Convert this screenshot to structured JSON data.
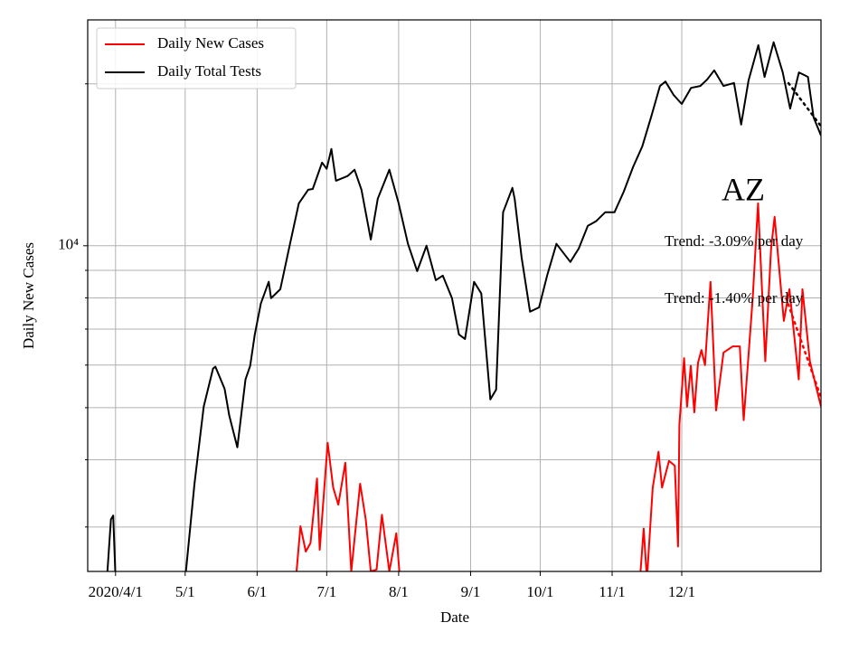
{
  "chart_data": {
    "type": "line",
    "annotation": "AZ",
    "xlabel": "Date",
    "ylabel": "Daily New Cases",
    "yscale": "log",
    "grid": true,
    "legend": "upper left",
    "xlim": [
      -12,
      304
    ],
    "xticks": [
      {
        "value": 0,
        "label": "2020/4/1"
      },
      {
        "value": 30,
        "label": "5/1"
      },
      {
        "value": 61,
        "label": "6/1"
      },
      {
        "value": 91,
        "label": "7/1"
      },
      {
        "value": 122,
        "label": "8/1"
      },
      {
        "value": 153,
        "label": "9/1"
      },
      {
        "value": 183,
        "label": "10/1"
      },
      {
        "value": 214,
        "label": "11/1"
      },
      {
        "value": 244,
        "label": "12/1"
      }
    ],
    "ylim": [
      2480,
      26300
    ],
    "yticks": [
      {
        "value": 10000,
        "label": "10⁴"
      }
    ],
    "yminor_ticks": [
      3000,
      4000,
      5000,
      6000,
      7000,
      8000,
      9000,
      20000
    ],
    "series": [
      {
        "name": "Daily New Cases",
        "color": "#ff0000",
        "x": [
          78,
          79.7,
          82,
          84,
          86.8,
          88,
          91.4,
          93.8,
          96,
          99,
          101.6,
          105.4,
          107.8,
          110,
          112.5,
          114.8,
          118,
          121,
          122.6,
          null,
          226,
          227.6,
          229,
          231.5,
          234,
          235.5,
          238.5,
          241,
          242.4,
          243,
          245,
          246.3,
          247.9,
          249.4,
          251,
          252.5,
          254,
          256.4,
          258.8,
          262,
          266,
          269,
          270.7,
          272.3,
          274.6,
          276.9,
          280,
          282.5,
          284,
          288,
          290.4,
          294.4,
          296,
          299.2,
          304
        ],
        "values": [
          2480,
          3010,
          2700,
          2800,
          3690,
          2720,
          4300,
          3550,
          3300,
          3950,
          2480,
          3610,
          3100,
          2480,
          2500,
          3160,
          2480,
          2920,
          2400,
          null,
          2400,
          2980,
          2400,
          3550,
          4140,
          3550,
          3980,
          3900,
          2760,
          4650,
          6180,
          5020,
          5980,
          4900,
          6060,
          6400,
          6000,
          8570,
          4940,
          6330,
          6500,
          6500,
          4740,
          5860,
          7990,
          11990,
          6100,
          9880,
          11320,
          7250,
          8300,
          5640,
          8300,
          6100,
          5020
        ]
      },
      {
        "name": "Daily Total Tests",
        "color": "#000000",
        "x": [
          -4,
          -2,
          -1,
          0,
          null,
          30,
          34,
          38,
          42,
          43,
          47,
          49,
          52.5,
          56,
          58,
          60,
          62.6,
          66,
          67,
          71,
          75,
          79,
          83,
          85,
          89,
          91,
          93,
          95,
          100,
          103,
          106,
          110,
          113,
          118,
          122,
          126,
          130,
          134,
          138,
          141,
          145,
          148,
          150.6,
          154.5,
          157.6,
          161.5,
          164,
          167,
          171,
          172,
          175,
          178.6,
          182.5,
          186,
          190,
          196,
          199.6,
          203.5,
          207,
          211,
          215,
          219,
          223,
          227,
          231,
          234.6,
          237,
          240.5,
          244,
          248,
          252,
          255,
          258,
          262,
          266.5,
          269.6,
          272.8,
          277,
          279.7,
          283.6,
          287.5,
          290.7,
          294.5,
          298.4,
          300.8,
          304
        ],
        "values": [
          2300,
          3100,
          3150,
          2400,
          null,
          2400,
          3610,
          5020,
          5910,
          5960,
          5420,
          4830,
          4220,
          5640,
          5980,
          6840,
          7810,
          8570,
          7990,
          8300,
          10000,
          11990,
          12710,
          12750,
          14280,
          13900,
          15130,
          13210,
          13480,
          13850,
          12710,
          10270,
          12230,
          13850,
          11990,
          10080,
          8970,
          10000,
          8630,
          8800,
          7990,
          6840,
          6710,
          8570,
          8150,
          5180,
          5400,
          11540,
          12810,
          12230,
          9510,
          7540,
          7680,
          8810,
          10080,
          9330,
          9880,
          10890,
          11100,
          11540,
          11540,
          12610,
          14000,
          15310,
          17460,
          19820,
          20200,
          19070,
          18350,
          19660,
          19820,
          20390,
          21190,
          19820,
          20070,
          16800,
          20300,
          23600,
          20600,
          23900,
          21000,
          17990,
          21000,
          20600,
          17330,
          16030
        ]
      }
    ],
    "trends": [
      {
        "color": "#000000",
        "x": [
          290,
          304
        ],
        "values": [
          20060,
          16680
        ],
        "text": "Trend: -3.09% per day"
      },
      {
        "color": "#ff0000",
        "x": [
          289,
          304
        ],
        "values": [
          7990,
          5220
        ],
        "text": "Trend: -1.40% per day"
      }
    ]
  }
}
